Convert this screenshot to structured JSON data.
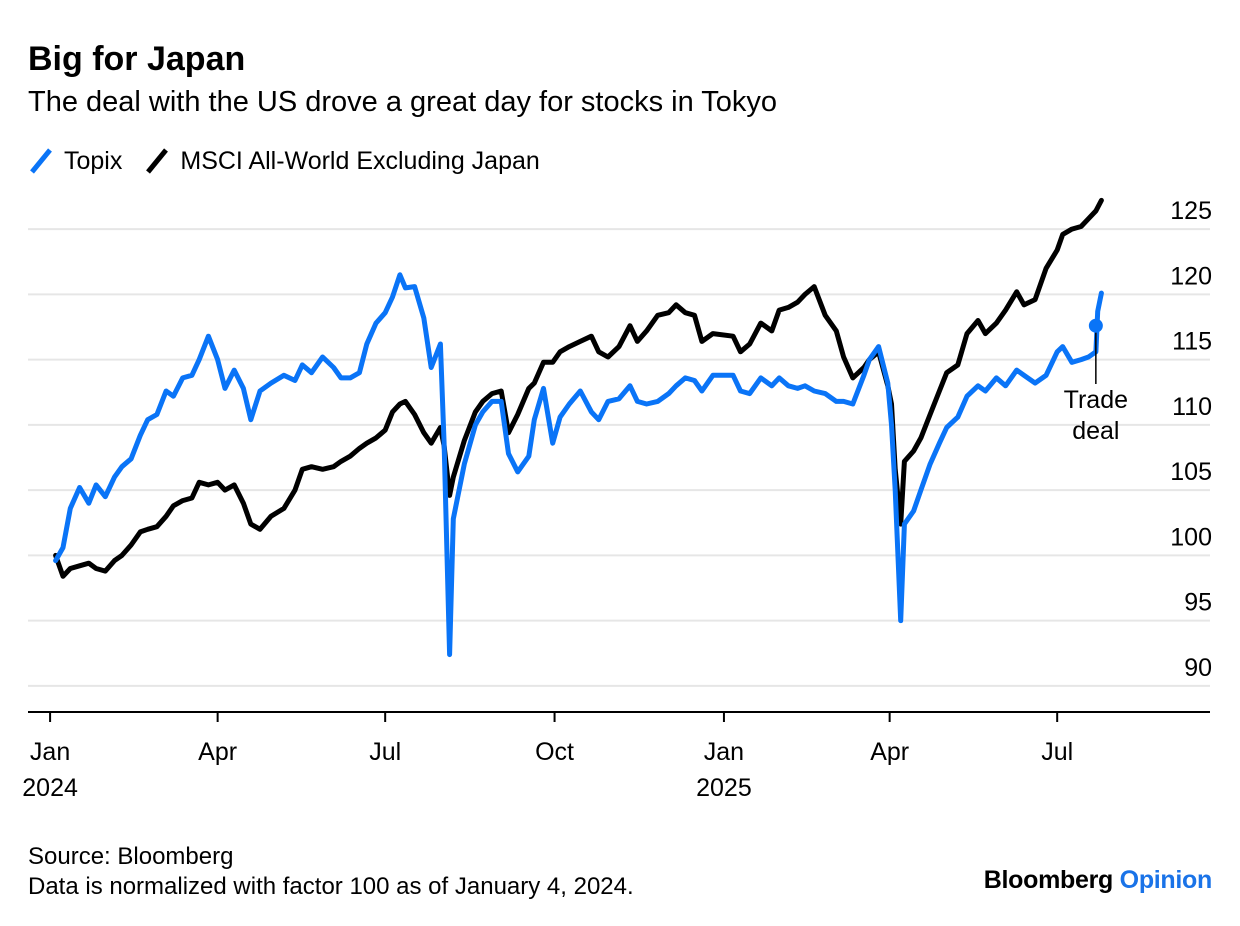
{
  "title": "Big for Japan",
  "subtitle": "The deal with the US drove a great day for stocks in Tokyo",
  "legend": [
    {
      "name": "Topix",
      "color": "#0a74f7",
      "icon": "slash-line-swatch"
    },
    {
      "name": "MSCI All-World Excluding Japan",
      "color": "#000000",
      "icon": "slash-line-swatch"
    }
  ],
  "footer": {
    "source": "Source: Bloomberg",
    "note": "Data is normalized with factor 100 as of January 4, 2024."
  },
  "brand": {
    "name": "Bloomberg",
    "accent": "Opinion",
    "accent_color": "#1a73e8"
  },
  "chart_data": {
    "type": "line",
    "title": "Big for Japan",
    "subtitle": "The deal with the US drove a great day for stocks in Tokyo",
    "xlabel": "",
    "ylabel": "",
    "y_axis_side": "right",
    "ylim": [
      88,
      128
    ],
    "yticks": [
      90,
      95,
      100,
      105,
      110,
      115,
      120,
      125
    ],
    "xlim": [
      "2023-12-20",
      "2025-09-22"
    ],
    "xticks": [
      {
        "date": "2024-01-01",
        "label": "Jan",
        "year": "2024"
      },
      {
        "date": "2024-04-01",
        "label": "Apr",
        "year": ""
      },
      {
        "date": "2024-07-01",
        "label": "Jul",
        "year": ""
      },
      {
        "date": "2024-10-01",
        "label": "Oct",
        "year": ""
      },
      {
        "date": "2025-01-01",
        "label": "Jan",
        "year": "2025"
      },
      {
        "date": "2025-04-01",
        "label": "Apr",
        "year": ""
      },
      {
        "date": "2025-07-01",
        "label": "Jul",
        "year": ""
      }
    ],
    "grid": true,
    "legend_position": "top-left",
    "series": [
      {
        "name": "Topix",
        "color": "#0a74f7",
        "points": [
          [
            "2024-01-04",
            99.6
          ],
          [
            "2024-01-08",
            100.6
          ],
          [
            "2024-01-12",
            103.6
          ],
          [
            "2024-01-17",
            105.2
          ],
          [
            "2024-01-22",
            104.0
          ],
          [
            "2024-01-26",
            105.4
          ],
          [
            "2024-01-31",
            104.5
          ],
          [
            "2024-02-05",
            106.0
          ],
          [
            "2024-02-09",
            106.8
          ],
          [
            "2024-02-14",
            107.4
          ],
          [
            "2024-02-19",
            109.2
          ],
          [
            "2024-02-23",
            110.4
          ],
          [
            "2024-02-28",
            110.8
          ],
          [
            "2024-03-04",
            112.6
          ],
          [
            "2024-03-08",
            112.2
          ],
          [
            "2024-03-13",
            113.6
          ],
          [
            "2024-03-18",
            113.8
          ],
          [
            "2024-03-22",
            115.0
          ],
          [
            "2024-03-27",
            116.8
          ],
          [
            "2024-04-01",
            115.0
          ],
          [
            "2024-04-05",
            112.8
          ],
          [
            "2024-04-10",
            114.2
          ],
          [
            "2024-04-15",
            112.8
          ],
          [
            "2024-04-19",
            110.4
          ],
          [
            "2024-04-24",
            112.6
          ],
          [
            "2024-04-30",
            113.2
          ],
          [
            "2024-05-07",
            113.8
          ],
          [
            "2024-05-13",
            113.4
          ],
          [
            "2024-05-17",
            114.6
          ],
          [
            "2024-05-22",
            114.0
          ],
          [
            "2024-05-28",
            115.2
          ],
          [
            "2024-06-03",
            114.4
          ],
          [
            "2024-06-07",
            113.6
          ],
          [
            "2024-06-12",
            113.6
          ],
          [
            "2024-06-17",
            114.0
          ],
          [
            "2024-06-21",
            116.2
          ],
          [
            "2024-06-26",
            117.8
          ],
          [
            "2024-07-01",
            118.6
          ],
          [
            "2024-07-05",
            119.8
          ],
          [
            "2024-07-09",
            121.5
          ],
          [
            "2024-07-12",
            120.5
          ],
          [
            "2024-07-17",
            120.6
          ],
          [
            "2024-07-22",
            118.2
          ],
          [
            "2024-07-26",
            114.4
          ],
          [
            "2024-07-31",
            116.2
          ],
          [
            "2024-08-02",
            108.6
          ],
          [
            "2024-08-05",
            92.4
          ],
          [
            "2024-08-07",
            102.8
          ],
          [
            "2024-08-13",
            107.0
          ],
          [
            "2024-08-19",
            110.0
          ],
          [
            "2024-08-23",
            111.0
          ],
          [
            "2024-08-28",
            111.8
          ],
          [
            "2024-09-02",
            111.8
          ],
          [
            "2024-09-06",
            107.8
          ],
          [
            "2024-09-11",
            106.4
          ],
          [
            "2024-09-17",
            107.6
          ],
          [
            "2024-09-20",
            110.4
          ],
          [
            "2024-09-25",
            112.8
          ],
          [
            "2024-09-30",
            108.6
          ],
          [
            "2024-10-04",
            110.6
          ],
          [
            "2024-10-09",
            111.6
          ],
          [
            "2024-10-15",
            112.6
          ],
          [
            "2024-10-21",
            111.0
          ],
          [
            "2024-10-25",
            110.4
          ],
          [
            "2024-10-30",
            111.8
          ],
          [
            "2024-11-05",
            112.0
          ],
          [
            "2024-11-11",
            113.0
          ],
          [
            "2024-11-15",
            111.8
          ],
          [
            "2024-11-20",
            111.6
          ],
          [
            "2024-11-26",
            111.8
          ],
          [
            "2024-12-02",
            112.4
          ],
          [
            "2024-12-06",
            113.0
          ],
          [
            "2024-12-11",
            113.6
          ],
          [
            "2024-12-16",
            113.4
          ],
          [
            "2024-12-20",
            112.6
          ],
          [
            "2024-12-26",
            113.8
          ],
          [
            "2025-01-06",
            113.8
          ],
          [
            "2025-01-10",
            112.6
          ],
          [
            "2025-01-15",
            112.4
          ],
          [
            "2025-01-21",
            113.6
          ],
          [
            "2025-01-27",
            113.0
          ],
          [
            "2025-01-31",
            113.6
          ],
          [
            "2025-02-05",
            113.0
          ],
          [
            "2025-02-10",
            112.8
          ],
          [
            "2025-02-14",
            113.0
          ],
          [
            "2025-02-19",
            112.6
          ],
          [
            "2025-02-25",
            112.4
          ],
          [
            "2025-03-03",
            111.8
          ],
          [
            "2025-03-07",
            111.8
          ],
          [
            "2025-03-12",
            111.6
          ],
          [
            "2025-03-18",
            113.8
          ],
          [
            "2025-03-21",
            115.0
          ],
          [
            "2025-03-26",
            116.0
          ],
          [
            "2025-03-31",
            113.2
          ],
          [
            "2025-04-02",
            110.0
          ],
          [
            "2025-04-04",
            105.0
          ],
          [
            "2025-04-07",
            95.0
          ],
          [
            "2025-04-09",
            102.4
          ],
          [
            "2025-04-14",
            103.4
          ],
          [
            "2025-04-18",
            105.0
          ],
          [
            "2025-04-23",
            107.0
          ],
          [
            "2025-04-28",
            108.6
          ],
          [
            "2025-05-02",
            109.8
          ],
          [
            "2025-05-08",
            110.6
          ],
          [
            "2025-05-13",
            112.2
          ],
          [
            "2025-05-19",
            113.0
          ],
          [
            "2025-05-23",
            112.6
          ],
          [
            "2025-05-29",
            113.6
          ],
          [
            "2025-06-03",
            113.0
          ],
          [
            "2025-06-09",
            114.2
          ],
          [
            "2025-06-13",
            113.8
          ],
          [
            "2025-06-19",
            113.2
          ],
          [
            "2025-06-25",
            113.8
          ],
          [
            "2025-07-01",
            115.6
          ],
          [
            "2025-07-04",
            116.0
          ],
          [
            "2025-07-09",
            114.8
          ],
          [
            "2025-07-14",
            115.0
          ],
          [
            "2025-07-18",
            115.2
          ],
          [
            "2025-07-22",
            115.6
          ],
          [
            "2025-07-23",
            118.7
          ],
          [
            "2025-07-25",
            120.1
          ]
        ]
      },
      {
        "name": "MSCI All-World Excluding Japan",
        "color": "#000000",
        "points": [
          [
            "2024-01-04",
            100.0
          ],
          [
            "2024-01-08",
            98.4
          ],
          [
            "2024-01-12",
            99.0
          ],
          [
            "2024-01-17",
            99.2
          ],
          [
            "2024-01-22",
            99.4
          ],
          [
            "2024-01-26",
            99.0
          ],
          [
            "2024-01-31",
            98.8
          ],
          [
            "2024-02-05",
            99.6
          ],
          [
            "2024-02-09",
            100.0
          ],
          [
            "2024-02-14",
            100.8
          ],
          [
            "2024-02-19",
            101.8
          ],
          [
            "2024-02-23",
            102.0
          ],
          [
            "2024-02-28",
            102.2
          ],
          [
            "2024-03-04",
            103.0
          ],
          [
            "2024-03-08",
            103.8
          ],
          [
            "2024-03-13",
            104.2
          ],
          [
            "2024-03-18",
            104.4
          ],
          [
            "2024-03-22",
            105.6
          ],
          [
            "2024-03-27",
            105.4
          ],
          [
            "2024-04-01",
            105.6
          ],
          [
            "2024-04-05",
            105.0
          ],
          [
            "2024-04-10",
            105.4
          ],
          [
            "2024-04-15",
            104.0
          ],
          [
            "2024-04-19",
            102.4
          ],
          [
            "2024-04-24",
            102.0
          ],
          [
            "2024-04-30",
            103.0
          ],
          [
            "2024-05-07",
            103.6
          ],
          [
            "2024-05-13",
            105.0
          ],
          [
            "2024-05-17",
            106.6
          ],
          [
            "2024-05-22",
            106.8
          ],
          [
            "2024-05-28",
            106.6
          ],
          [
            "2024-06-03",
            106.8
          ],
          [
            "2024-06-07",
            107.2
          ],
          [
            "2024-06-12",
            107.6
          ],
          [
            "2024-06-17",
            108.2
          ],
          [
            "2024-06-21",
            108.6
          ],
          [
            "2024-06-26",
            109.0
          ],
          [
            "2024-07-01",
            109.6
          ],
          [
            "2024-07-05",
            111.0
          ],
          [
            "2024-07-09",
            111.6
          ],
          [
            "2024-07-12",
            111.8
          ],
          [
            "2024-07-17",
            110.8
          ],
          [
            "2024-07-22",
            109.4
          ],
          [
            "2024-07-26",
            108.6
          ],
          [
            "2024-07-31",
            109.8
          ],
          [
            "2024-08-02",
            108.4
          ],
          [
            "2024-08-05",
            104.6
          ],
          [
            "2024-08-07",
            106.0
          ],
          [
            "2024-08-13",
            108.8
          ],
          [
            "2024-08-19",
            111.0
          ],
          [
            "2024-08-23",
            111.8
          ],
          [
            "2024-08-28",
            112.4
          ],
          [
            "2024-09-02",
            112.6
          ],
          [
            "2024-09-06",
            109.4
          ],
          [
            "2024-09-11",
            110.8
          ],
          [
            "2024-09-17",
            112.8
          ],
          [
            "2024-09-20",
            113.2
          ],
          [
            "2024-09-25",
            114.8
          ],
          [
            "2024-09-30",
            114.8
          ],
          [
            "2024-10-04",
            115.6
          ],
          [
            "2024-10-09",
            116.0
          ],
          [
            "2024-10-15",
            116.4
          ],
          [
            "2024-10-21",
            116.8
          ],
          [
            "2024-10-25",
            115.6
          ],
          [
            "2024-10-30",
            115.2
          ],
          [
            "2024-11-05",
            116.0
          ],
          [
            "2024-11-11",
            117.6
          ],
          [
            "2024-11-15",
            116.4
          ],
          [
            "2024-11-20",
            117.2
          ],
          [
            "2024-11-26",
            118.4
          ],
          [
            "2024-12-02",
            118.6
          ],
          [
            "2024-12-06",
            119.2
          ],
          [
            "2024-12-11",
            118.6
          ],
          [
            "2024-12-16",
            118.4
          ],
          [
            "2024-12-20",
            116.4
          ],
          [
            "2024-12-26",
            117.0
          ],
          [
            "2025-01-06",
            116.8
          ],
          [
            "2025-01-10",
            115.6
          ],
          [
            "2025-01-15",
            116.2
          ],
          [
            "2025-01-21",
            117.8
          ],
          [
            "2025-01-27",
            117.2
          ],
          [
            "2025-01-31",
            118.8
          ],
          [
            "2025-02-05",
            119.0
          ],
          [
            "2025-02-10",
            119.4
          ],
          [
            "2025-02-14",
            120.0
          ],
          [
            "2025-02-19",
            120.6
          ],
          [
            "2025-02-25",
            118.4
          ],
          [
            "2025-03-03",
            117.2
          ],
          [
            "2025-03-07",
            115.2
          ],
          [
            "2025-03-12",
            113.6
          ],
          [
            "2025-03-18",
            114.4
          ],
          [
            "2025-03-21",
            115.0
          ],
          [
            "2025-03-26",
            115.6
          ],
          [
            "2025-03-31",
            113.0
          ],
          [
            "2025-04-02",
            111.6
          ],
          [
            "2025-04-04",
            106.6
          ],
          [
            "2025-04-07",
            102.4
          ],
          [
            "2025-04-09",
            107.2
          ],
          [
            "2025-04-14",
            108.0
          ],
          [
            "2025-04-18",
            109.0
          ],
          [
            "2025-04-23",
            110.8
          ],
          [
            "2025-04-28",
            112.6
          ],
          [
            "2025-05-02",
            114.0
          ],
          [
            "2025-05-08",
            114.6
          ],
          [
            "2025-05-13",
            117.0
          ],
          [
            "2025-05-19",
            118.0
          ],
          [
            "2025-05-23",
            117.0
          ],
          [
            "2025-05-29",
            117.8
          ],
          [
            "2025-06-03",
            118.8
          ],
          [
            "2025-06-09",
            120.2
          ],
          [
            "2025-06-13",
            119.2
          ],
          [
            "2025-06-19",
            119.6
          ],
          [
            "2025-06-25",
            122.0
          ],
          [
            "2025-07-01",
            123.4
          ],
          [
            "2025-07-04",
            124.6
          ],
          [
            "2025-07-09",
            125.0
          ],
          [
            "2025-07-14",
            125.2
          ],
          [
            "2025-07-18",
            125.8
          ],
          [
            "2025-07-22",
            126.4
          ],
          [
            "2025-07-25",
            127.2
          ]
        ]
      }
    ],
    "annotations": [
      {
        "text": [
          "Trade",
          "deal"
        ],
        "date": "2025-07-22",
        "value": 117.6,
        "series": "Topix"
      }
    ]
  }
}
